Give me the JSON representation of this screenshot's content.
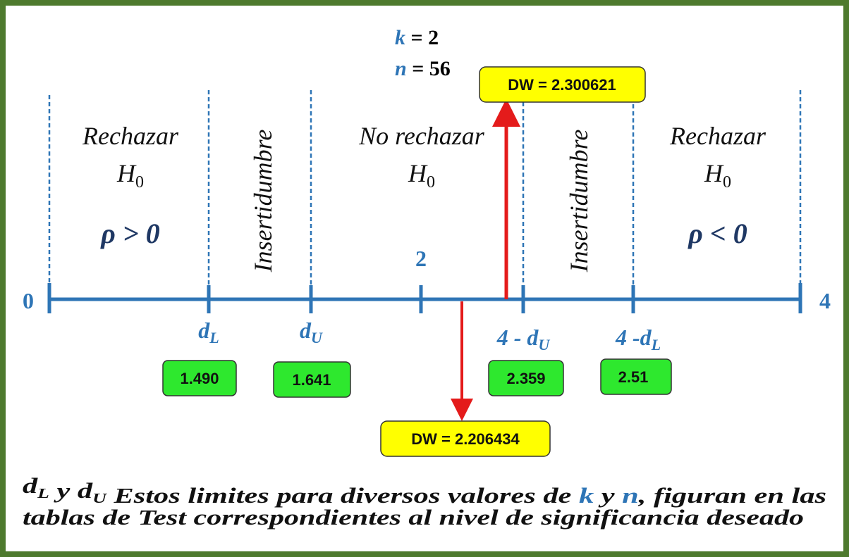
{
  "params": [
    {
      "symbol": "k",
      "rest": "= 2"
    },
    {
      "symbol": "n",
      "rest": "= 56"
    }
  ],
  "dw_upper": "DW = 2.300621",
  "dw_lower": "DW = 2.206434",
  "zones": [
    {
      "line1": "Rechazar",
      "h": {
        "base": "H",
        "sub": "0"
      },
      "rho": "ρ > 0"
    },
    {
      "label": "Insertidumbre"
    },
    {
      "line1": "No rechazar",
      "h": {
        "base": "H",
        "sub": "0"
      }
    },
    {
      "label": "Insertidumbre"
    },
    {
      "line1": "Rechazar",
      "h": {
        "base": "H",
        "sub": "0"
      },
      "rho": "ρ < 0"
    }
  ],
  "axis": {
    "start": "0",
    "middle": "2",
    "end": "4"
  },
  "limits": [
    {
      "prefix": "",
      "base": "d",
      "sub": "L",
      "value": "1.490"
    },
    {
      "prefix": "",
      "base": "d",
      "sub": "U",
      "value": "1.641"
    },
    {
      "prefix": "4 - ",
      "base": "d",
      "sub": "U",
      "value": "2.359"
    },
    {
      "prefix": "4 -",
      "base": "d",
      "sub": "L",
      "value": "2.51"
    }
  ],
  "footer": {
    "line1": [
      {
        "text": "d",
        "sub": "L"
      },
      {
        "text": " y "
      },
      {
        "text": "d",
        "sub": "U"
      },
      {
        "text": " Estos limites para diversos valores de "
      },
      {
        "text": "k",
        "blue": true
      },
      {
        "text": " y "
      },
      {
        "text": "n",
        "blue": true
      },
      {
        "text": ", figuran en las"
      }
    ],
    "line2": "tablas de Test correspondientes al nivel de significancia deseado"
  }
}
